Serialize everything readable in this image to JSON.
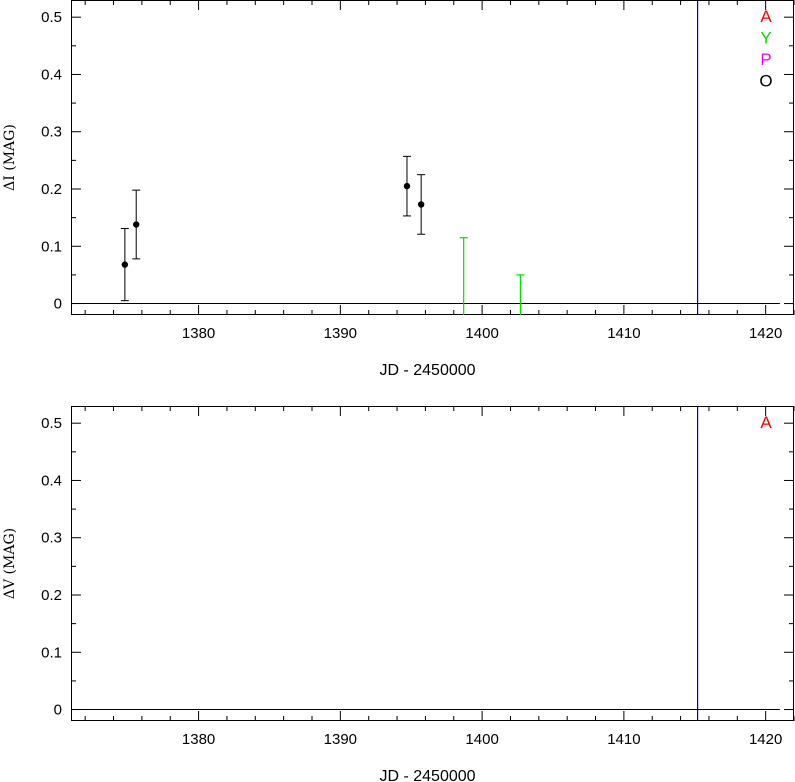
{
  "colors": {
    "A": "#ff0000",
    "Y": "#00dd00",
    "P": "#ee00ee",
    "O": "#000000",
    "reference_line": "#0000bb",
    "axis": "#000000"
  },
  "chart_data": [
    {
      "type": "scatter",
      "title": "",
      "xlabel": "JD - 2450000",
      "ylabel": "ΔI (MAG)",
      "xlim": [
        1371,
        1422
      ],
      "ylim": [
        -0.02,
        0.53
      ],
      "x_ticks": [
        1380,
        1390,
        1400,
        1410,
        1420
      ],
      "x_tick_labels": [
        "1380",
        "1390",
        "1400",
        "1410",
        "1420"
      ],
      "y_ticks": [
        0,
        0.1,
        0.2,
        0.3,
        0.4,
        0.5
      ],
      "y_tick_labels": [
        "0",
        "0.1",
        "0.2",
        "0.3",
        "0.4",
        "0.5"
      ],
      "zero_line": {
        "x_start": 1371,
        "x_end": 1421,
        "y": 0
      },
      "vertical_line": {
        "x": 1415.2
      },
      "legend": {
        "placement": "top-right",
        "entries": [
          {
            "label": "A",
            "color_key": "A"
          },
          {
            "label": "Y",
            "color_key": "Y"
          },
          {
            "label": "P",
            "color_key": "P"
          },
          {
            "label": "O",
            "color_key": "O"
          }
        ]
      },
      "series": [
        {
          "color_key": "O",
          "points": [
            {
              "x": 1374.8,
              "y": 0.068,
              "err_low": 0.063,
              "err_high": 0.063
            },
            {
              "x": 1375.6,
              "y": 0.138,
              "err_low": 0.06,
              "err_high": 0.06
            },
            {
              "x": 1394.7,
              "y": 0.205,
              "err_low": 0.052,
              "err_high": 0.052
            },
            {
              "x": 1395.7,
              "y": 0.173,
              "err_low": 0.052,
              "err_high": 0.052
            }
          ]
        },
        {
          "color_key": "Y",
          "upper_limits": [
            {
              "x": 1398.7,
              "y_top": 0.115
            },
            {
              "x": 1402.7,
              "y_top": 0.05
            }
          ]
        }
      ]
    },
    {
      "type": "scatter",
      "title": "",
      "xlabel": "JD - 2450000",
      "ylabel": "ΔV (MAG)",
      "xlim": [
        1371,
        1422
      ],
      "ylim": [
        -0.02,
        0.53
      ],
      "x_ticks": [
        1380,
        1390,
        1400,
        1410,
        1420
      ],
      "x_tick_labels": [
        "1380",
        "1390",
        "1400",
        "1410",
        "1420"
      ],
      "y_ticks": [
        0,
        0.1,
        0.2,
        0.3,
        0.4,
        0.5
      ],
      "y_tick_labels": [
        "0",
        "0.1",
        "0.2",
        "0.3",
        "0.4",
        "0.5"
      ],
      "zero_line": {
        "x_start": 1371,
        "x_end": 1421,
        "y": 0
      },
      "vertical_line": {
        "x": 1415.2
      },
      "legend": {
        "placement": "top-right",
        "entries": [
          {
            "label": "A",
            "color_key": "A"
          }
        ]
      },
      "series": []
    }
  ]
}
